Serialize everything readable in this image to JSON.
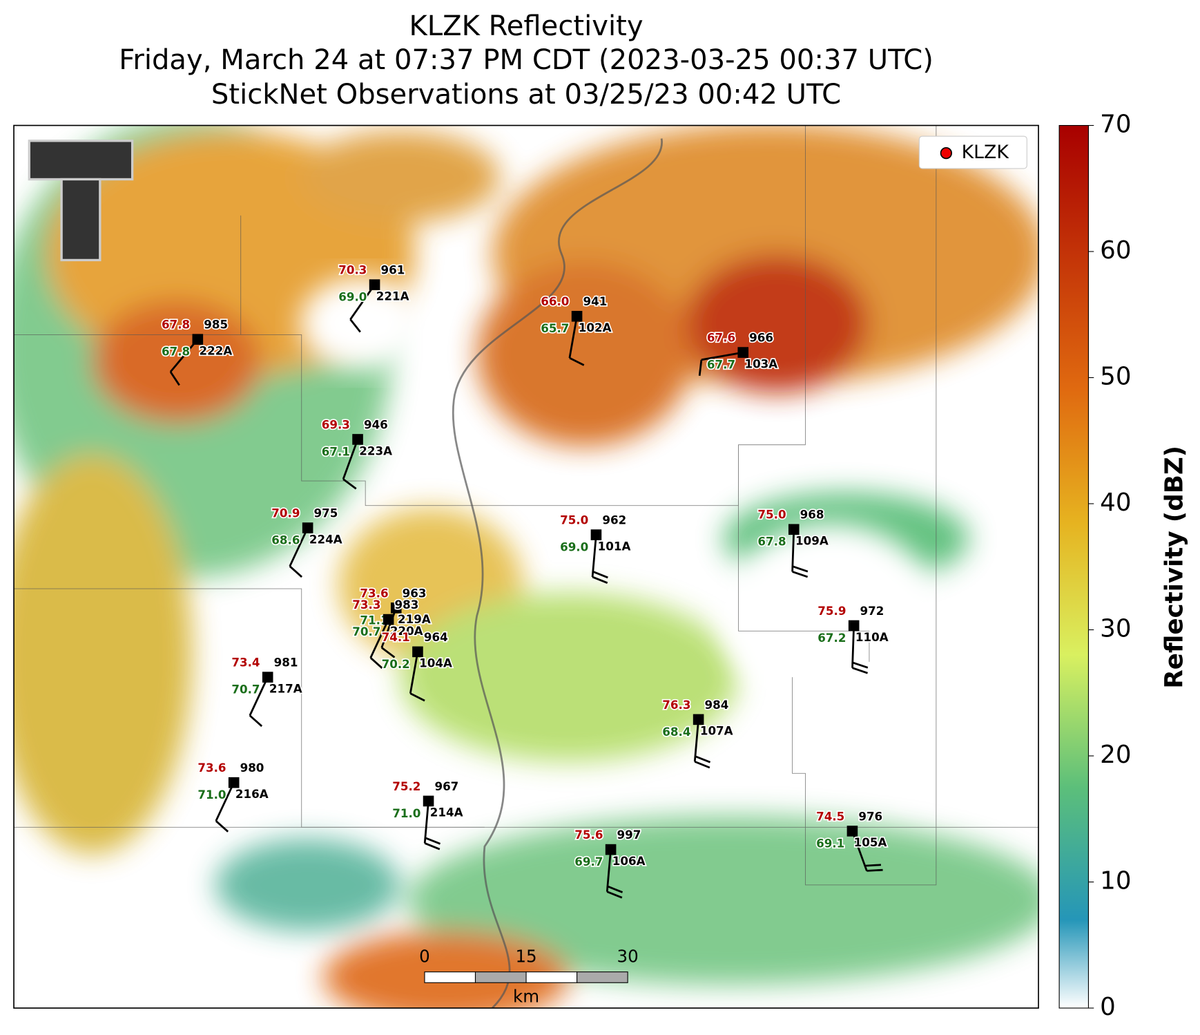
{
  "title": [
    "KLZK Reflectivity",
    "Friday, March 24 at 07:37 PM CDT (2023-03-25 00:37 UTC)",
    "StickNet Observations at 03/25/23 00:42 UTC"
  ],
  "legend": "KLZK",
  "colorbar": {
    "label": "Reflectivity (dBZ)",
    "lim": [
      0,
      70
    ],
    "ticks": [
      0,
      10,
      20,
      30,
      40,
      50,
      60,
      70
    ]
  },
  "scale_bar": {
    "lim": [
      0,
      30
    ],
    "ticks": [
      0,
      15,
      30
    ],
    "unit": "km"
  },
  "stations": [
    {
      "id": "221A",
      "temp": "70.3",
      "pressure": "961",
      "dewpoint": "69.0"
    },
    {
      "id": "222A",
      "temp": "67.8",
      "pressure": "985",
      "dewpoint": "67.8"
    },
    {
      "id": "102A",
      "temp": "66.0",
      "pressure": "941",
      "dewpoint": "65.7"
    },
    {
      "id": "103A",
      "temp": "67.6",
      "pressure": "966",
      "dewpoint": "67.7"
    },
    {
      "id": "223A",
      "temp": "69.3",
      "pressure": "946",
      "dewpoint": "67.1"
    },
    {
      "id": "224A",
      "temp": "70.9",
      "pressure": "975",
      "dewpoint": "68.6"
    },
    {
      "id": "101A",
      "temp": "75.0",
      "pressure": "962",
      "dewpoint": "69.0"
    },
    {
      "id": "109A",
      "temp": "75.0",
      "pressure": "968",
      "dewpoint": "67.8"
    },
    {
      "id": "219A",
      "temp": "73.6",
      "pressure": "963",
      "dewpoint": "71.1"
    },
    {
      "id": "220A",
      "temp": "73.3",
      "pressure": "983",
      "dewpoint": "70.7"
    },
    {
      "id": "104A",
      "temp": "74.1",
      "pressure": "964",
      "dewpoint": "70.2"
    },
    {
      "id": "110A",
      "temp": "75.9",
      "pressure": "972",
      "dewpoint": "67.2"
    },
    {
      "id": "217A",
      "temp": "73.4",
      "pressure": "981",
      "dewpoint": "70.7"
    },
    {
      "id": "107A",
      "temp": "76.3",
      "pressure": "984",
      "dewpoint": "68.4"
    },
    {
      "id": "216A",
      "temp": "73.6",
      "pressure": "980",
      "dewpoint": "71.0"
    },
    {
      "id": "214A",
      "temp": "75.2",
      "pressure": "967",
      "dewpoint": "71.0"
    },
    {
      "id": "106A",
      "temp": "75.6",
      "pressure": "997",
      "dewpoint": "69.7"
    },
    {
      "id": "105A",
      "temp": "74.5",
      "pressure": "976",
      "dewpoint": "69.1"
    }
  ]
}
